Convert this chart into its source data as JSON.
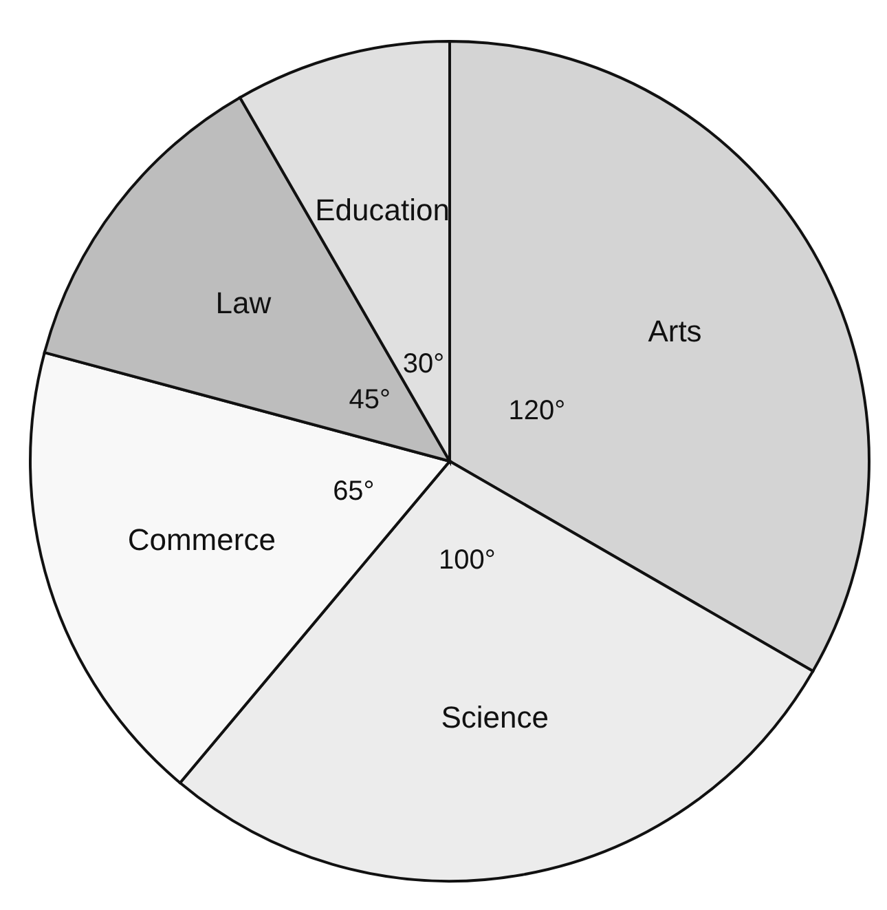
{
  "chart_data": {
    "type": "pie",
    "categories": [
      "Arts",
      "Science",
      "Commerce",
      "Law",
      "Education"
    ],
    "values": [
      120,
      100,
      65,
      45,
      30
    ],
    "value_labels": [
      "120°",
      "100°",
      "65°",
      "45°",
      "30°"
    ],
    "colors": [
      "#d4d4d4",
      "#ececec",
      "#f8f8f8",
      "#bdbdbd",
      "#e0e0e0"
    ]
  }
}
